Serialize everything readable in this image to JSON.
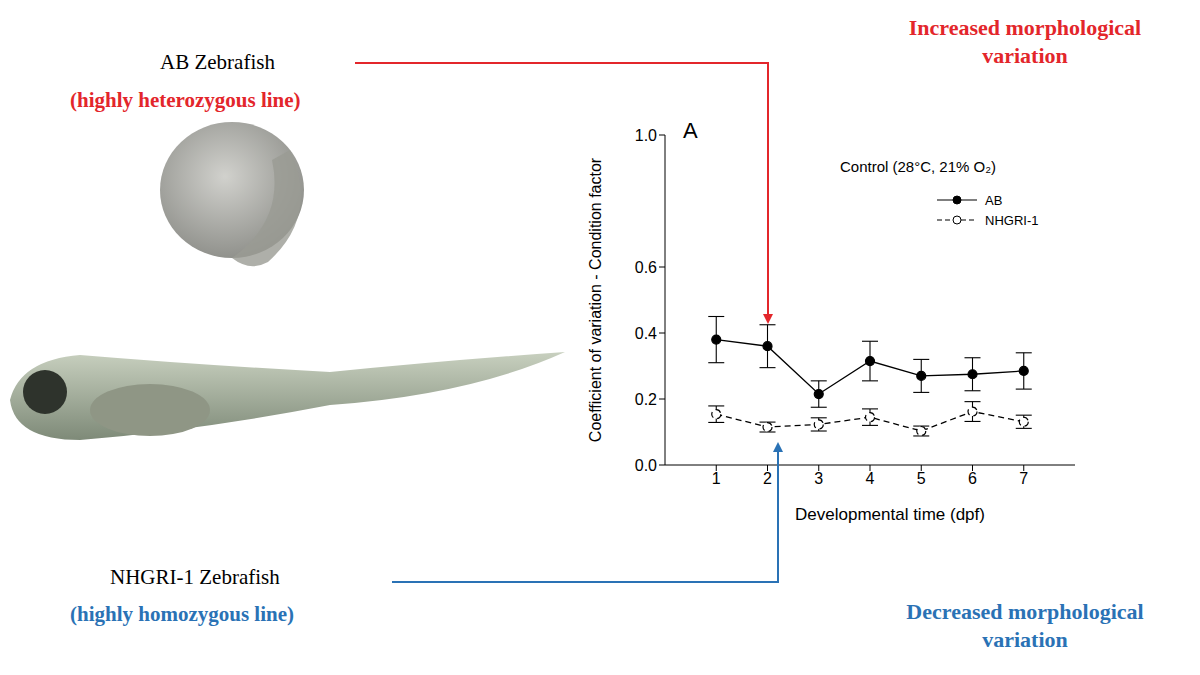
{
  "chart_data": {
    "type": "line",
    "title": "Control (28°C, 21% O₂)",
    "panel_label": "A",
    "x_label": "Developmental time (dpf)",
    "y_label": "Coefficient of variation - Condition factor",
    "x": [
      1,
      2,
      3,
      4,
      5,
      6,
      7
    ],
    "xlim": [
      0,
      8
    ],
    "xticks": [
      1,
      2,
      3,
      4,
      5,
      6,
      7
    ],
    "ylim": [
      0,
      1
    ],
    "yticks": [
      {
        "value": 0,
        "label": "0.0"
      },
      0.2,
      0.4,
      0.6,
      {
        "value": 1,
        "label": "1.0"
      }
    ],
    "legend": "upper right",
    "series": [
      {
        "name": "AB",
        "color": "#000000",
        "marker": "filled_circle",
        "line_style": "solid",
        "values": [
          0.38,
          0.36,
          0.215,
          0.315,
          0.27,
          0.275,
          0.285
        ],
        "errors": [
          0.07,
          0.065,
          0.04,
          0.06,
          0.05,
          0.05,
          0.055
        ]
      },
      {
        "name": "NHGRI-1",
        "color": "#000000",
        "marker": "open_circle",
        "line_style": "dashed",
        "values": [
          0.154,
          0.115,
          0.123,
          0.145,
          0.103,
          0.162,
          0.131
        ],
        "errors": [
          0.025,
          0.015,
          0.02,
          0.025,
          0.015,
          0.03,
          0.02
        ]
      }
    ],
    "annotations": {
      "top_left": {
        "name": "AB Zebrafish",
        "note": "(highly heterozygous line)",
        "color": "#e3262b"
      },
      "top_right": {
        "text": "Increased morphological variation",
        "color": "#e3262b"
      },
      "bottom_left": {
        "name": "NHGRI-1 Zebrafish",
        "note": "(highly homozygous line)",
        "color": "#2a72b5"
      },
      "bottom_right": {
        "text": "Decreased morphological variation",
        "color": "#2a72b5"
      }
    }
  }
}
